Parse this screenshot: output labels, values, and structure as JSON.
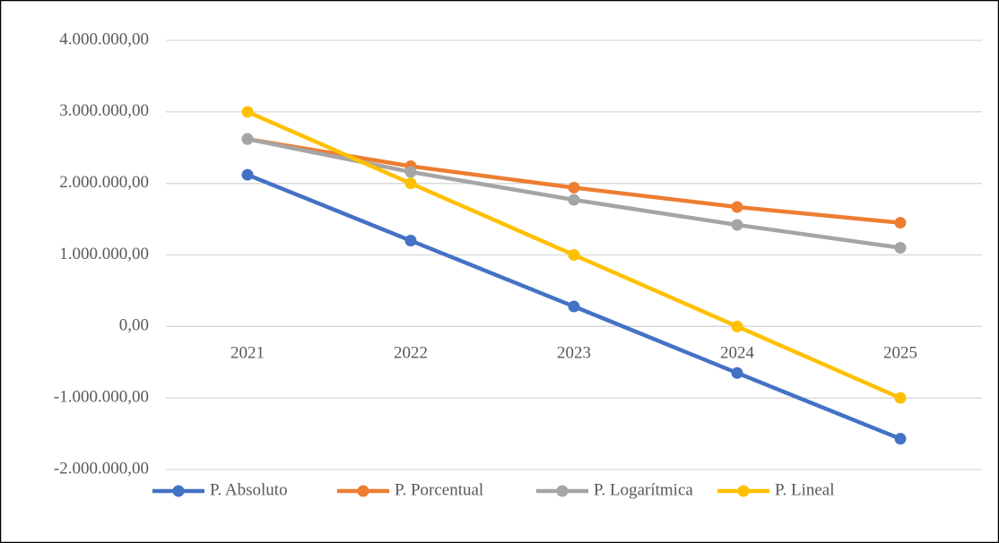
{
  "chart_data": {
    "type": "line",
    "categories": [
      "2021",
      "2022",
      "2023",
      "2024",
      "2025"
    ],
    "series": [
      {
        "name": "P. Absoluto",
        "color": "#4472c4",
        "values": [
          2120000,
          1200000,
          280000,
          -650000,
          -1570000
        ]
      },
      {
        "name": "P. Porcentual",
        "color": "#ed7d31",
        "values": [
          2620000,
          2240000,
          1940000,
          1670000,
          1450000
        ]
      },
      {
        "name": "P. Logarítmica",
        "color": "#a5a5a5",
        "values": [
          2620000,
          2160000,
          1770000,
          1420000,
          1100000
        ]
      },
      {
        "name": "P. Lineal",
        "color": "#ffc000",
        "values": [
          3000000,
          2000000,
          1000000,
          0,
          -1000000
        ]
      }
    ],
    "ylim": [
      -2000000,
      4000000
    ],
    "yticks": [
      {
        "value": -2000000,
        "label": "-2.000.000,00"
      },
      {
        "value": -1000000,
        "label": "-1.000.000,00"
      },
      {
        "value": 0,
        "label": "0,00"
      },
      {
        "value": 1000000,
        "label": "1.000.000,00"
      },
      {
        "value": 2000000,
        "label": "2.000.000,00"
      },
      {
        "value": 3000000,
        "label": "3.000.000,00"
      },
      {
        "value": 4000000,
        "label": "4.000.000,00"
      }
    ],
    "grid": true,
    "legend": "bottom"
  }
}
